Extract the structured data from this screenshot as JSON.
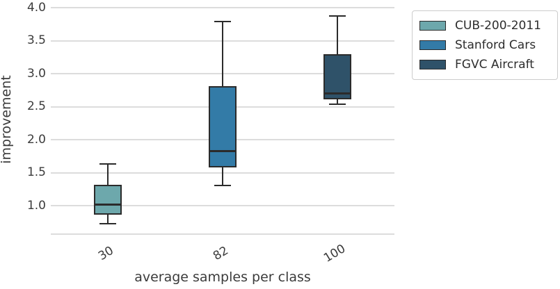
{
  "chart_data": {
    "type": "box",
    "title": "",
    "xlabel": "average samples per class",
    "ylabel": "improvement",
    "categories": [
      "30",
      "82",
      "100"
    ],
    "ytick_values": [
      4.0,
      3.5,
      3.0,
      2.5,
      2.0,
      1.5,
      1.0
    ],
    "ytick_labels": [
      "4.0",
      "3.5",
      "3.0",
      "2.5",
      "2.0",
      "1.5",
      "1.0"
    ],
    "ylim": [
      0.57,
      4.12
    ],
    "grid": true,
    "legend_position": "upper-right",
    "series": [
      {
        "name": "CUB-200-2011",
        "category": "30",
        "color": "#6da8ac",
        "whisker_low": 0.73,
        "q1": 0.87,
        "median": 1.02,
        "q3": 1.32,
        "whisker_high": 1.63
      },
      {
        "name": "Stanford Cars",
        "category": "82",
        "color": "#337ba7",
        "whisker_low": 1.31,
        "q1": 1.58,
        "median": 1.83,
        "q3": 2.81,
        "whisker_high": 3.79
      },
      {
        "name": "FGVC Aircraft",
        "category": "100",
        "color": "#2f5269",
        "whisker_low": 2.54,
        "q1": 2.61,
        "median": 2.7,
        "q3": 3.3,
        "whisker_high": 3.88
      }
    ],
    "colors": {
      "box_line": "#2b2b2b",
      "grid_line": "#dcdcdc",
      "text": "#3b3b3b",
      "legend_border": "#cccccc",
      "background": "#ffffff"
    }
  }
}
